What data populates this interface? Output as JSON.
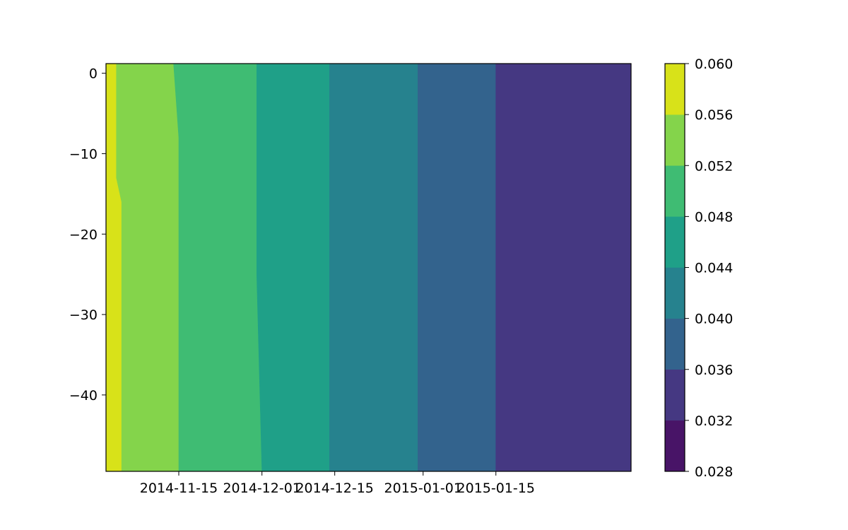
{
  "chart_data": {
    "type": "contourf",
    "title": "",
    "xlabel": "",
    "ylabel": "",
    "x_axis": {
      "type": "date",
      "range": [
        "2014-11-01",
        "2015-02-10"
      ],
      "ticks": [
        {
          "value": "2014-11-15",
          "label": "2014-11-15"
        },
        {
          "value": "2014-12-01",
          "label": "2014-12-01"
        },
        {
          "value": "2014-12-15",
          "label": "2014-12-15"
        },
        {
          "value": "2015-01-01",
          "label": "2015-01-01"
        },
        {
          "value": "2015-01-15",
          "label": "2015-01-15"
        }
      ]
    },
    "y_axis": {
      "range": [
        -49.5,
        1.2
      ],
      "ticks": [
        {
          "value": 0,
          "label": "0"
        },
        {
          "value": -10,
          "label": "−10"
        },
        {
          "value": -20,
          "label": "−20"
        },
        {
          "value": -30,
          "label": "−30"
        },
        {
          "value": -40,
          "label": "−40"
        }
      ]
    },
    "levels": [
      0.028,
      0.032,
      0.036,
      0.04,
      0.044,
      0.048,
      0.052,
      0.056,
      0.06
    ],
    "level_labels": [
      "0.028",
      "0.032",
      "0.036",
      "0.040",
      "0.044",
      "0.048",
      "0.052",
      "0.056",
      "0.060"
    ],
    "level_colors": [
      "#481467",
      "#453882",
      "#33638d",
      "#26828e",
      "#1fa088",
      "#3fbc73",
      "#84d44b",
      "#d8e219"
    ],
    "bands": [
      {
        "level_index": 7,
        "from": null,
        "to": [
          {
            "depth": 1.2,
            "date": "2014-11-03"
          },
          {
            "depth": -4,
            "date": "2014-11-03"
          },
          {
            "depth": -13,
            "date": "2014-11-03"
          },
          {
            "depth": -16,
            "date": "2014-11-04"
          },
          {
            "depth": -25,
            "date": "2014-11-04"
          },
          {
            "depth": -49.5,
            "date": "2014-11-04"
          }
        ]
      },
      {
        "level_index": 6,
        "to": [
          {
            "depth": 1.2,
            "date": "2014-11-14"
          },
          {
            "depth": -8,
            "date": "2014-11-15"
          },
          {
            "depth": -20,
            "date": "2014-11-15"
          },
          {
            "depth": -35,
            "date": "2014-11-15"
          },
          {
            "depth": -49.5,
            "date": "2014-11-15"
          }
        ]
      },
      {
        "level_index": 5,
        "to": [
          {
            "depth": 1.2,
            "date": "2014-11-30"
          },
          {
            "depth": -10,
            "date": "2014-11-30"
          },
          {
            "depth": -25,
            "date": "2014-11-30"
          },
          {
            "depth": -49.5,
            "date": "2014-12-01"
          }
        ]
      },
      {
        "level_index": 4,
        "to": [
          {
            "depth": 1.2,
            "date": "2014-12-14"
          },
          {
            "depth": -20,
            "date": "2014-12-14"
          },
          {
            "depth": -49.5,
            "date": "2014-12-14"
          }
        ]
      },
      {
        "level_index": 3,
        "to": [
          {
            "depth": 1.2,
            "date": "2014-12-31"
          },
          {
            "depth": -20,
            "date": "2014-12-31"
          },
          {
            "depth": -49.5,
            "date": "2014-12-31"
          }
        ]
      },
      {
        "level_index": 2,
        "to": [
          {
            "depth": 1.2,
            "date": "2015-01-15"
          },
          {
            "depth": -25,
            "date": "2015-01-15"
          },
          {
            "depth": -49.5,
            "date": "2015-01-15"
          }
        ]
      },
      {
        "level_index": 1,
        "to": null
      }
    ],
    "colorbar": {
      "position": "right"
    },
    "grid": false,
    "legend": "none"
  }
}
